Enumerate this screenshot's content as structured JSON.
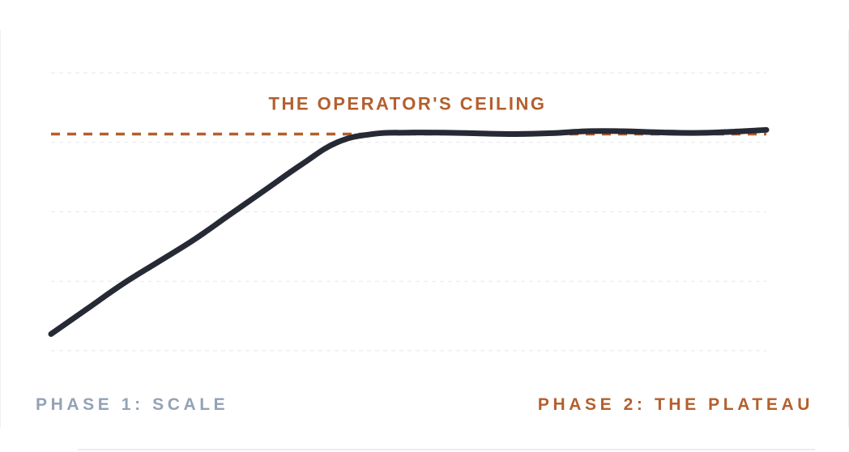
{
  "chart_data": {
    "type": "line",
    "title": "",
    "xlabel": "",
    "ylabel": "",
    "grid": true,
    "xlim": [
      0,
      100
    ],
    "ylim": [
      0,
      100
    ],
    "series": [
      {
        "x": [
          0,
          5,
          10,
          15,
          20,
          25,
          30,
          35,
          40,
          45,
          50,
          55,
          60,
          65,
          70,
          75,
          80,
          85,
          90,
          95,
          100
        ],
        "values": [
          6,
          15,
          24,
          32,
          40,
          49,
          58,
          67,
          75,
          78,
          78.5,
          78.5,
          78.2,
          78,
          78.3,
          79,
          79,
          78.6,
          78.4,
          78.8,
          79.5
        ]
      }
    ],
    "ceiling": {
      "value": 78,
      "label": "THE OPERATOR'S CEILING"
    },
    "phases": [
      {
        "label": "PHASE 1: SCALE"
      },
      {
        "label": "PHASE 2: THE PLATEAU"
      }
    ]
  },
  "colors": {
    "line": "#262a35",
    "accent": "#b45f2d",
    "muted": "#93a2b6",
    "grid": "#e5e7eb"
  }
}
